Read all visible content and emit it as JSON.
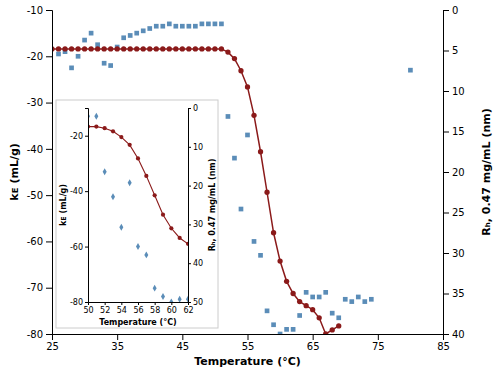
{
  "chart_data": [
    {
      "type": "scatter",
      "x_label": "Temperature (°C)",
      "y_label": "kᴇ (mL/g)",
      "y2_label": "Rₕ, 0.47 mg/mL (nm)",
      "xlim": [
        25,
        85
      ],
      "ylim": [
        -80,
        -10
      ],
      "y2lim": [
        40,
        0
      ],
      "xticks": [
        25,
        35,
        45,
        55,
        65,
        75,
        85
      ],
      "yticks": [
        -80,
        -70,
        -60,
        -50,
        -40,
        -30,
        -20,
        -10
      ],
      "y2ticks": [
        40,
        35,
        30,
        25,
        20,
        15,
        10,
        5,
        0
      ],
      "series": [
        {
          "type": "scatter",
          "marker": "square",
          "color": "#5b8db8",
          "x": [
            26,
            27,
            28,
            29,
            30,
            31,
            32,
            33,
            34,
            35,
            36,
            37,
            38,
            39,
            40,
            41,
            42,
            43,
            44,
            45,
            46,
            47,
            48,
            49,
            50,
            51,
            52,
            53,
            54,
            55,
            56,
            57,
            58,
            59,
            60,
            61,
            62,
            63,
            64,
            65,
            66,
            67,
            68,
            69,
            70,
            71,
            72,
            73,
            74,
            80
          ],
          "values": [
            -19.5,
            -19.0,
            -22.5,
            -20.0,
            -16.5,
            -15.0,
            -17.5,
            -21.5,
            -22.0,
            -18.0,
            -16.0,
            -15.5,
            -15.0,
            -14.5,
            -14.0,
            -13.5,
            -13.5,
            -13.0,
            -13.5,
            -13.5,
            -13.5,
            -13.5,
            -13.0,
            -13.0,
            -13.0,
            -13.0,
            -33.0,
            -42.0,
            -53.0,
            -37.0,
            -60.0,
            -63.0,
            -75.0,
            -78.0,
            -80.0,
            -79.0,
            -79.0,
            -76.0,
            -71.0,
            -72.0,
            -72.0,
            -71.0,
            -75.5,
            -76.5,
            -72.5,
            -73.0,
            -72.0,
            -73.0,
            -72.5,
            -23.0
          ]
        },
        {
          "type": "line",
          "marker": "circle",
          "color": "#8b1a1a",
          "axis": "y2",
          "x": [
            25,
            26,
            27,
            28,
            29,
            30,
            31,
            32,
            33,
            34,
            35,
            36,
            37,
            38,
            39,
            40,
            41,
            42,
            43,
            44,
            45,
            46,
            47,
            48,
            49,
            50,
            51,
            52,
            53,
            54,
            55,
            56,
            57,
            58,
            59,
            60,
            61,
            62,
            63,
            64,
            65,
            66,
            67,
            68,
            69
          ],
          "values": [
            4.8,
            4.8,
            4.8,
            4.8,
            4.8,
            4.8,
            4.8,
            4.8,
            4.8,
            4.8,
            4.8,
            4.8,
            4.8,
            4.8,
            4.8,
            4.8,
            4.8,
            4.8,
            4.8,
            4.8,
            4.8,
            4.8,
            4.8,
            4.8,
            4.8,
            4.8,
            4.8,
            5.2,
            6.0,
            7.5,
            9.5,
            13.0,
            17.5,
            22.5,
            27.5,
            31.0,
            33.5,
            35.0,
            36.0,
            36.5,
            37.0,
            38.0,
            40.0,
            39.5,
            39.0
          ]
        }
      ]
    },
    {
      "type": "scatter",
      "x_label": "Temperature (°C)",
      "y_label": "kᴇ (mL/g)",
      "y2_label": "Rₕ, 0.47 mg/mL (nm)",
      "xlim": [
        50,
        62
      ],
      "ylim": [
        -80,
        -10
      ],
      "y2lim": [
        50,
        0
      ],
      "xticks": [
        50,
        52,
        54,
        56,
        58,
        60,
        62
      ],
      "yticks": [
        -80,
        -60,
        -40,
        -20
      ],
      "y2ticks": [
        50,
        40,
        30,
        20,
        10,
        0
      ],
      "series": [
        {
          "type": "scatter",
          "marker": "diamond",
          "color": "#5b8db8",
          "x": [
            50,
            51,
            52,
            53,
            54,
            55,
            56,
            57,
            58,
            59,
            60,
            61,
            62
          ],
          "values": [
            -13.0,
            -13.0,
            -33.0,
            -42.0,
            -53.0,
            -37.0,
            -60.0,
            -63.0,
            -75.0,
            -78.0,
            -80.0,
            -79.0,
            -79.0
          ]
        },
        {
          "type": "line",
          "marker": "circle",
          "color": "#8b1a1a",
          "axis": "y2",
          "x": [
            50,
            51,
            52,
            53,
            54,
            55,
            56,
            57,
            58,
            59,
            60,
            61,
            62
          ],
          "values": [
            4.8,
            4.8,
            5.2,
            6.0,
            7.5,
            9.5,
            13.0,
            17.5,
            22.5,
            27.5,
            31.0,
            33.5,
            35.0
          ]
        }
      ]
    }
  ]
}
